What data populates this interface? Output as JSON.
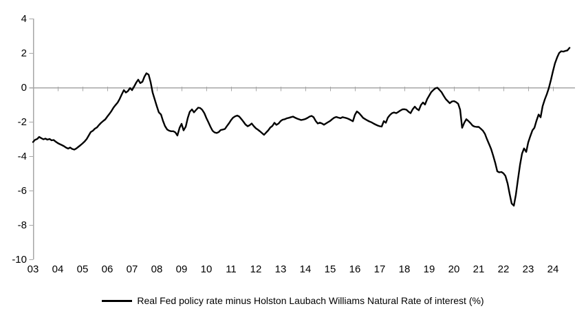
{
  "colors": {
    "background": "#ffffff",
    "axis": "#a6a6a6",
    "series_line": "#000000",
    "text": "#000000"
  },
  "legend": {
    "swatch": "solid-black-line",
    "label": "Real Fed policy rate minus Holston Laubach Williams Natural Rate of interest (%)"
  },
  "chart_data": {
    "type": "line",
    "title": "",
    "xlabel": "",
    "ylabel": "",
    "grid": "zero-line-only",
    "legend_position": "bottom-center",
    "ylim": [
      -10,
      4
    ],
    "xlim": [
      2003,
      2024.92
    ],
    "y_ticks": [
      4,
      2,
      0,
      -2,
      -4,
      -6,
      -8,
      -10
    ],
    "x_ticks": [
      2003,
      2004,
      2005,
      2006,
      2007,
      2008,
      2009,
      2010,
      2011,
      2012,
      2013,
      2014,
      2015,
      2016,
      2017,
      2018,
      2019,
      2020,
      2021,
      2022,
      2023,
      2024
    ],
    "x_tick_labels": [
      "03",
      "04",
      "05",
      "06",
      "07",
      "08",
      "09",
      "10",
      "11",
      "12",
      "13",
      "14",
      "15",
      "16",
      "17",
      "18",
      "19",
      "20",
      "21",
      "22",
      "23",
      "24"
    ],
    "series": [
      {
        "name": "Real Fed policy rate minus Holston Laubach Williams Natural Rate of interest (%)",
        "color": "#000000",
        "points": [
          [
            2003.0,
            -3.18
          ],
          [
            2003.08,
            -3.05
          ],
          [
            2003.17,
            -3.0
          ],
          [
            2003.25,
            -2.88
          ],
          [
            2003.33,
            -2.95
          ],
          [
            2003.42,
            -3.02
          ],
          [
            2003.5,
            -2.98
          ],
          [
            2003.58,
            -3.04
          ],
          [
            2003.67,
            -3.0
          ],
          [
            2003.75,
            -3.08
          ],
          [
            2003.83,
            -3.06
          ],
          [
            2003.92,
            -3.16
          ],
          [
            2004.0,
            -3.24
          ],
          [
            2004.08,
            -3.3
          ],
          [
            2004.17,
            -3.36
          ],
          [
            2004.25,
            -3.42
          ],
          [
            2004.33,
            -3.5
          ],
          [
            2004.42,
            -3.56
          ],
          [
            2004.5,
            -3.5
          ],
          [
            2004.58,
            -3.58
          ],
          [
            2004.67,
            -3.62
          ],
          [
            2004.75,
            -3.55
          ],
          [
            2004.83,
            -3.46
          ],
          [
            2004.92,
            -3.36
          ],
          [
            2005.0,
            -3.26
          ],
          [
            2005.08,
            -3.15
          ],
          [
            2005.17,
            -3.0
          ],
          [
            2005.25,
            -2.8
          ],
          [
            2005.33,
            -2.6
          ],
          [
            2005.42,
            -2.52
          ],
          [
            2005.5,
            -2.4
          ],
          [
            2005.58,
            -2.33
          ],
          [
            2005.67,
            -2.18
          ],
          [
            2005.75,
            -2.06
          ],
          [
            2005.83,
            -1.96
          ],
          [
            2005.92,
            -1.86
          ],
          [
            2006.0,
            -1.7
          ],
          [
            2006.08,
            -1.55
          ],
          [
            2006.17,
            -1.37
          ],
          [
            2006.25,
            -1.18
          ],
          [
            2006.33,
            -1.03
          ],
          [
            2006.42,
            -0.88
          ],
          [
            2006.5,
            -0.67
          ],
          [
            2006.58,
            -0.42
          ],
          [
            2006.67,
            -0.16
          ],
          [
            2006.75,
            -0.3
          ],
          [
            2006.83,
            -0.22
          ],
          [
            2006.92,
            -0.04
          ],
          [
            2007.0,
            -0.16
          ],
          [
            2007.08,
            0.04
          ],
          [
            2007.17,
            0.28
          ],
          [
            2007.25,
            0.45
          ],
          [
            2007.33,
            0.25
          ],
          [
            2007.42,
            0.33
          ],
          [
            2007.5,
            0.62
          ],
          [
            2007.58,
            0.82
          ],
          [
            2007.67,
            0.74
          ],
          [
            2007.75,
            0.3
          ],
          [
            2007.83,
            -0.3
          ],
          [
            2007.92,
            -0.72
          ],
          [
            2008.0,
            -1.1
          ],
          [
            2008.08,
            -1.45
          ],
          [
            2008.17,
            -1.58
          ],
          [
            2008.25,
            -1.95
          ],
          [
            2008.33,
            -2.25
          ],
          [
            2008.42,
            -2.45
          ],
          [
            2008.5,
            -2.52
          ],
          [
            2008.58,
            -2.55
          ],
          [
            2008.67,
            -2.55
          ],
          [
            2008.75,
            -2.62
          ],
          [
            2008.83,
            -2.8
          ],
          [
            2008.92,
            -2.35
          ],
          [
            2009.0,
            -2.12
          ],
          [
            2009.08,
            -2.5
          ],
          [
            2009.17,
            -2.28
          ],
          [
            2009.25,
            -1.78
          ],
          [
            2009.33,
            -1.42
          ],
          [
            2009.42,
            -1.28
          ],
          [
            2009.5,
            -1.45
          ],
          [
            2009.58,
            -1.32
          ],
          [
            2009.67,
            -1.18
          ],
          [
            2009.75,
            -1.2
          ],
          [
            2009.83,
            -1.3
          ],
          [
            2009.92,
            -1.5
          ],
          [
            2010.0,
            -1.78
          ],
          [
            2010.08,
            -2.02
          ],
          [
            2010.17,
            -2.3
          ],
          [
            2010.25,
            -2.52
          ],
          [
            2010.33,
            -2.62
          ],
          [
            2010.42,
            -2.65
          ],
          [
            2010.5,
            -2.6
          ],
          [
            2010.58,
            -2.48
          ],
          [
            2010.67,
            -2.45
          ],
          [
            2010.75,
            -2.42
          ],
          [
            2010.83,
            -2.25
          ],
          [
            2010.92,
            -2.08
          ],
          [
            2011.0,
            -1.9
          ],
          [
            2011.08,
            -1.76
          ],
          [
            2011.17,
            -1.68
          ],
          [
            2011.25,
            -1.64
          ],
          [
            2011.33,
            -1.7
          ],
          [
            2011.42,
            -1.85
          ],
          [
            2011.5,
            -2.0
          ],
          [
            2011.58,
            -2.16
          ],
          [
            2011.67,
            -2.26
          ],
          [
            2011.75,
            -2.2
          ],
          [
            2011.83,
            -2.1
          ],
          [
            2011.92,
            -2.26
          ],
          [
            2012.0,
            -2.38
          ],
          [
            2012.08,
            -2.46
          ],
          [
            2012.17,
            -2.56
          ],
          [
            2012.25,
            -2.66
          ],
          [
            2012.33,
            -2.76
          ],
          [
            2012.42,
            -2.62
          ],
          [
            2012.5,
            -2.5
          ],
          [
            2012.58,
            -2.34
          ],
          [
            2012.67,
            -2.24
          ],
          [
            2012.75,
            -2.06
          ],
          [
            2012.83,
            -2.18
          ],
          [
            2012.92,
            -2.1
          ],
          [
            2013.0,
            -1.96
          ],
          [
            2013.08,
            -1.88
          ],
          [
            2013.17,
            -1.85
          ],
          [
            2013.25,
            -1.8
          ],
          [
            2013.33,
            -1.77
          ],
          [
            2013.42,
            -1.73
          ],
          [
            2013.5,
            -1.7
          ],
          [
            2013.58,
            -1.76
          ],
          [
            2013.67,
            -1.82
          ],
          [
            2013.75,
            -1.86
          ],
          [
            2013.83,
            -1.9
          ],
          [
            2013.92,
            -1.87
          ],
          [
            2014.0,
            -1.84
          ],
          [
            2014.08,
            -1.78
          ],
          [
            2014.17,
            -1.7
          ],
          [
            2014.25,
            -1.66
          ],
          [
            2014.33,
            -1.73
          ],
          [
            2014.42,
            -1.96
          ],
          [
            2014.5,
            -2.1
          ],
          [
            2014.58,
            -2.05
          ],
          [
            2014.67,
            -2.1
          ],
          [
            2014.75,
            -2.17
          ],
          [
            2014.83,
            -2.1
          ],
          [
            2014.92,
            -2.02
          ],
          [
            2015.0,
            -1.95
          ],
          [
            2015.08,
            -1.85
          ],
          [
            2015.17,
            -1.76
          ],
          [
            2015.25,
            -1.72
          ],
          [
            2015.33,
            -1.76
          ],
          [
            2015.42,
            -1.79
          ],
          [
            2015.5,
            -1.73
          ],
          [
            2015.58,
            -1.76
          ],
          [
            2015.67,
            -1.79
          ],
          [
            2015.75,
            -1.84
          ],
          [
            2015.83,
            -1.9
          ],
          [
            2015.92,
            -1.97
          ],
          [
            2016.0,
            -1.6
          ],
          [
            2016.08,
            -1.4
          ],
          [
            2016.17,
            -1.5
          ],
          [
            2016.25,
            -1.63
          ],
          [
            2016.33,
            -1.77
          ],
          [
            2016.42,
            -1.85
          ],
          [
            2016.5,
            -1.92
          ],
          [
            2016.58,
            -1.98
          ],
          [
            2016.67,
            -2.03
          ],
          [
            2016.75,
            -2.1
          ],
          [
            2016.83,
            -2.16
          ],
          [
            2016.92,
            -2.22
          ],
          [
            2017.0,
            -2.26
          ],
          [
            2017.08,
            -2.28
          ],
          [
            2017.17,
            -1.96
          ],
          [
            2017.25,
            -2.06
          ],
          [
            2017.33,
            -1.76
          ],
          [
            2017.42,
            -1.6
          ],
          [
            2017.5,
            -1.5
          ],
          [
            2017.58,
            -1.46
          ],
          [
            2017.67,
            -1.5
          ],
          [
            2017.75,
            -1.43
          ],
          [
            2017.83,
            -1.35
          ],
          [
            2017.92,
            -1.28
          ],
          [
            2018.0,
            -1.27
          ],
          [
            2018.08,
            -1.3
          ],
          [
            2018.17,
            -1.42
          ],
          [
            2018.25,
            -1.5
          ],
          [
            2018.33,
            -1.28
          ],
          [
            2018.42,
            -1.12
          ],
          [
            2018.5,
            -1.25
          ],
          [
            2018.58,
            -1.33
          ],
          [
            2018.67,
            -1.02
          ],
          [
            2018.75,
            -0.88
          ],
          [
            2018.83,
            -1.0
          ],
          [
            2018.92,
            -0.68
          ],
          [
            2019.0,
            -0.48
          ],
          [
            2019.08,
            -0.28
          ],
          [
            2019.17,
            -0.15
          ],
          [
            2019.25,
            -0.05
          ],
          [
            2019.33,
            -0.02
          ],
          [
            2019.42,
            -0.15
          ],
          [
            2019.5,
            -0.28
          ],
          [
            2019.58,
            -0.48
          ],
          [
            2019.67,
            -0.68
          ],
          [
            2019.75,
            -0.8
          ],
          [
            2019.83,
            -0.92
          ],
          [
            2019.92,
            -0.82
          ],
          [
            2020.0,
            -0.8
          ],
          [
            2020.08,
            -0.85
          ],
          [
            2020.17,
            -0.95
          ],
          [
            2020.25,
            -1.3
          ],
          [
            2020.33,
            -2.35
          ],
          [
            2020.42,
            -2.05
          ],
          [
            2020.5,
            -1.85
          ],
          [
            2020.58,
            -1.95
          ],
          [
            2020.67,
            -2.08
          ],
          [
            2020.75,
            -2.22
          ],
          [
            2020.83,
            -2.28
          ],
          [
            2020.92,
            -2.3
          ],
          [
            2021.0,
            -2.3
          ],
          [
            2021.08,
            -2.4
          ],
          [
            2021.17,
            -2.52
          ],
          [
            2021.25,
            -2.7
          ],
          [
            2021.33,
            -3.0
          ],
          [
            2021.42,
            -3.3
          ],
          [
            2021.5,
            -3.58
          ],
          [
            2021.58,
            -3.95
          ],
          [
            2021.67,
            -4.4
          ],
          [
            2021.75,
            -4.88
          ],
          [
            2021.83,
            -4.94
          ],
          [
            2021.92,
            -4.92
          ],
          [
            2022.0,
            -5.0
          ],
          [
            2022.08,
            -5.15
          ],
          [
            2022.17,
            -5.6
          ],
          [
            2022.25,
            -6.2
          ],
          [
            2022.33,
            -6.75
          ],
          [
            2022.42,
            -6.88
          ],
          [
            2022.5,
            -6.25
          ],
          [
            2022.58,
            -5.4
          ],
          [
            2022.67,
            -4.5
          ],
          [
            2022.75,
            -3.85
          ],
          [
            2022.83,
            -3.55
          ],
          [
            2022.92,
            -3.75
          ],
          [
            2023.0,
            -3.2
          ],
          [
            2023.08,
            -2.85
          ],
          [
            2023.17,
            -2.5
          ],
          [
            2023.25,
            -2.35
          ],
          [
            2023.33,
            -1.95
          ],
          [
            2023.42,
            -1.58
          ],
          [
            2023.5,
            -1.74
          ],
          [
            2023.58,
            -1.1
          ],
          [
            2023.67,
            -0.7
          ],
          [
            2023.75,
            -0.4
          ],
          [
            2023.83,
            -0.05
          ],
          [
            2023.92,
            0.45
          ],
          [
            2024.0,
            0.95
          ],
          [
            2024.08,
            1.4
          ],
          [
            2024.17,
            1.75
          ],
          [
            2024.25,
            2.0
          ],
          [
            2024.33,
            2.1
          ],
          [
            2024.42,
            2.08
          ],
          [
            2024.5,
            2.12
          ],
          [
            2024.58,
            2.15
          ],
          [
            2024.67,
            2.3
          ]
        ]
      }
    ]
  }
}
